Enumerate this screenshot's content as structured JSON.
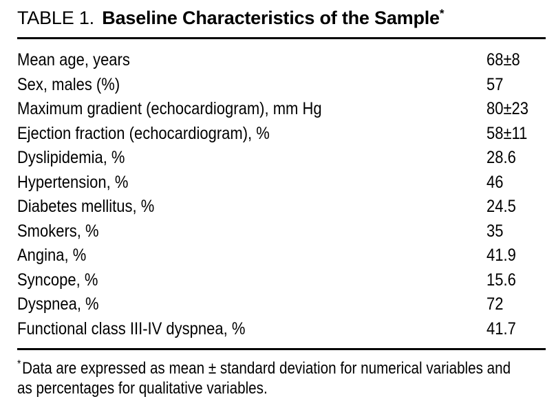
{
  "table": {
    "label": "TABLE 1.",
    "title": "Baseline Characteristics of the Sample",
    "title_footnote_marker": "*",
    "rows": [
      {
        "label": "Mean age, years",
        "value": "68±8"
      },
      {
        "label": "Sex, males (%)",
        "value": "57"
      },
      {
        "label": "Maximum gradient (echocardiogram), mm Hg",
        "value": "80±23"
      },
      {
        "label": "Ejection fraction (echocardiogram), %",
        "value": "58±11"
      },
      {
        "label": "Dyslipidemia, %",
        "value": "28.6"
      },
      {
        "label": "Hypertension, %",
        "value": "46"
      },
      {
        "label": "Diabetes mellitus, %",
        "value": "24.5"
      },
      {
        "label": "Smokers, %",
        "value": "35"
      },
      {
        "label": "Angina, %",
        "value": "41.9"
      },
      {
        "label": "Syncope, %",
        "value": "15.6"
      },
      {
        "label": "Dyspnea, %",
        "value": "72"
      },
      {
        "label": "Functional class III-IV dyspnea, %",
        "value": "41.7"
      }
    ],
    "footnote": {
      "marker": "*",
      "lines": [
        "Data are expressed as mean ± standard deviation for numerical variables and",
        "as percentages for qualitative variables."
      ]
    },
    "colors": {
      "text": "#000000",
      "background": "#ffffff",
      "rule": "#000000"
    }
  }
}
